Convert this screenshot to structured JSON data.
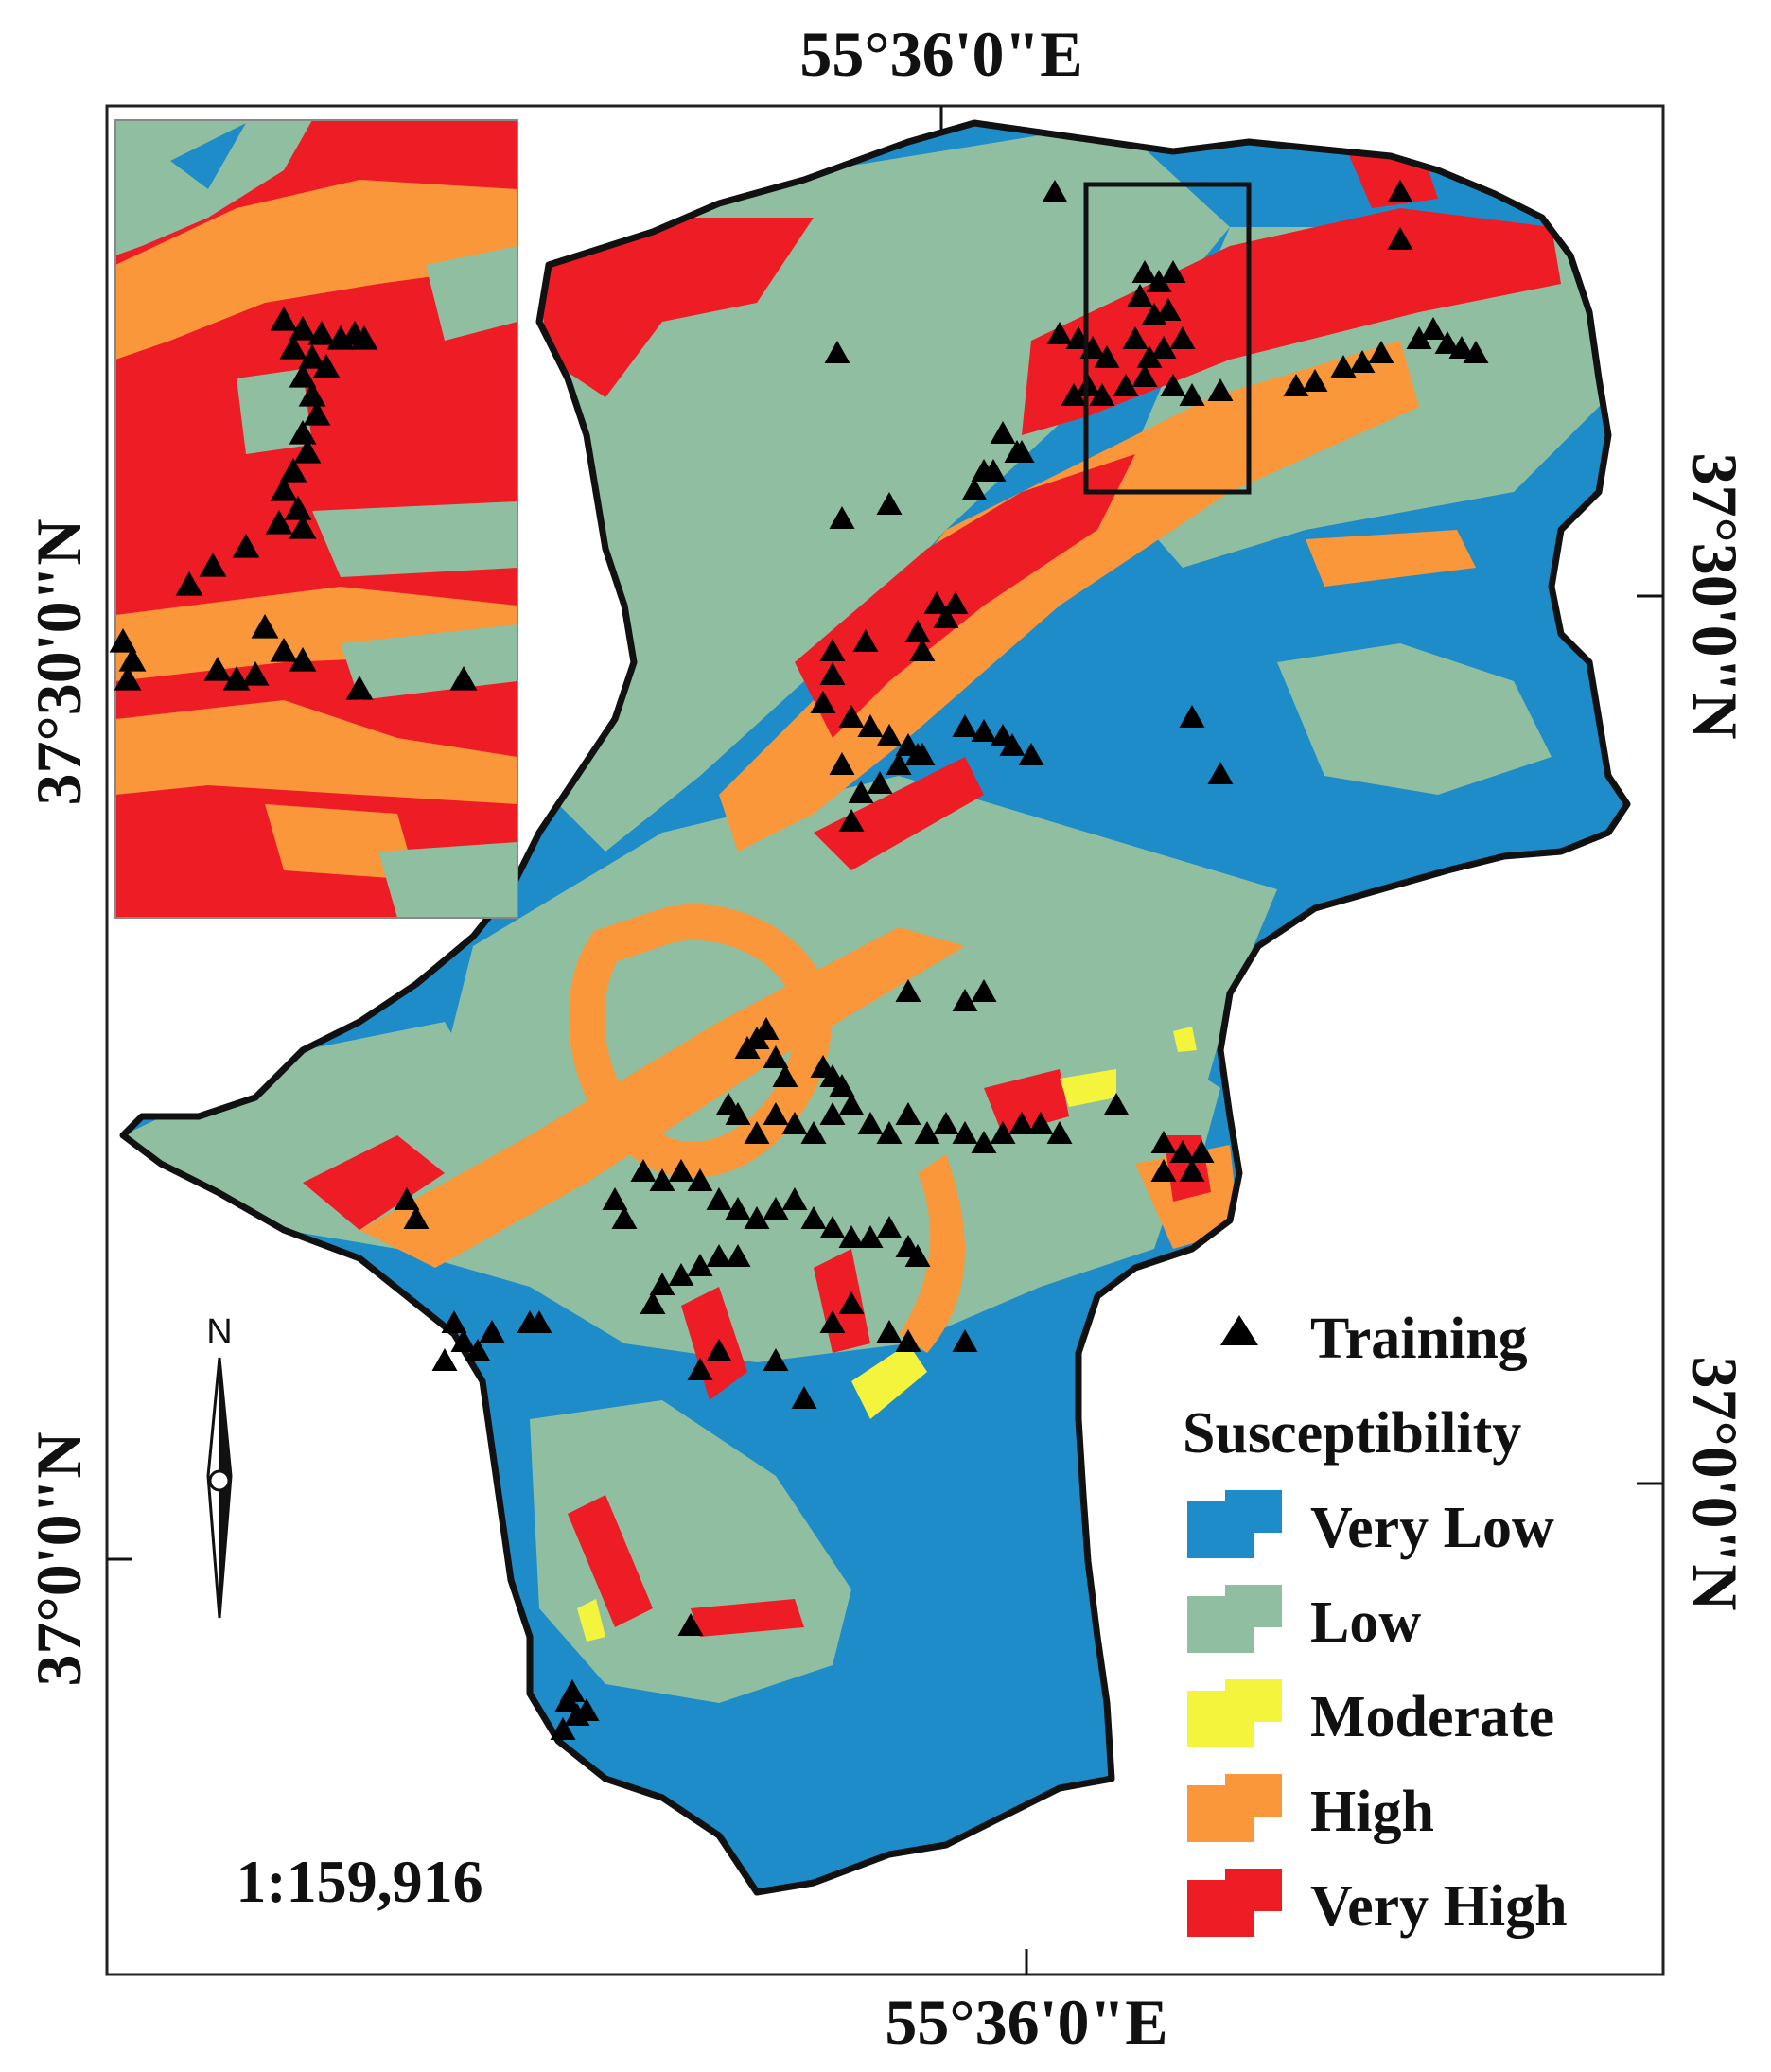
{
  "coordinates": {
    "top_longitude": "55°36'0\"E",
    "bottom_longitude": "55°36'0\"E",
    "left_latitude_upper": "37°30'0\"N",
    "left_latitude_lower": "37°0'0\"N",
    "right_latitude_upper": "37°30'0\"N",
    "right_latitude_lower": "37°0'0\"N"
  },
  "north_arrow": {
    "label": "N",
    "icon": "north-arrow-icon"
  },
  "scale": {
    "text": "1:159,916"
  },
  "legend": {
    "training_label": "Training",
    "training_icon": "triangle-icon",
    "title": "Susceptibility",
    "classes": [
      {
        "label": "Very Low",
        "color": "#1e8cc8"
      },
      {
        "label": "Low",
        "color": "#8fbfa0"
      },
      {
        "label": "Moderate",
        "color": "#f4f43c"
      },
      {
        "label": "High",
        "color": "#f9973a"
      },
      {
        "label": "Very High",
        "color": "#ee1c24"
      }
    ]
  }
}
